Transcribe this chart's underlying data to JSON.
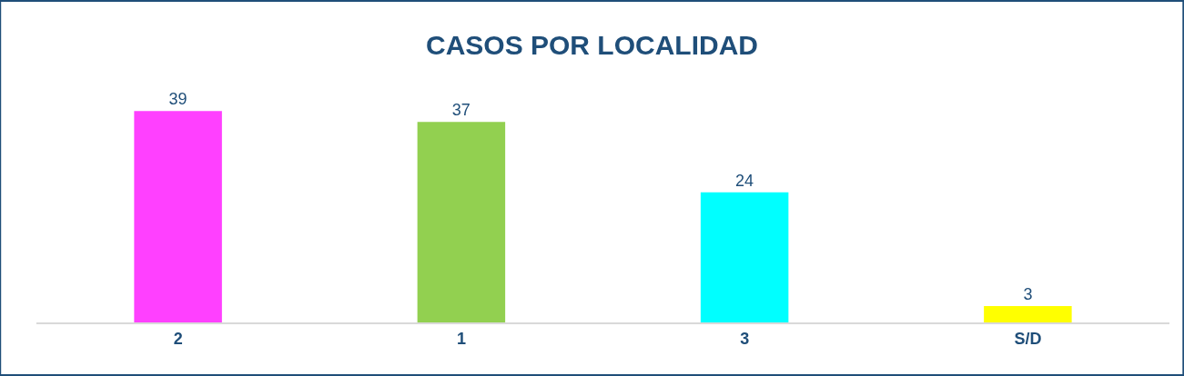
{
  "chart_data": {
    "type": "bar",
    "title": "CASOS POR LOCALIDAD",
    "categories": [
      "2",
      "1",
      "3",
      "S/D"
    ],
    "values": [
      39,
      37,
      24,
      3
    ],
    "colors": [
      "#ff40ff",
      "#92d050",
      "#00ffff",
      "#ffff00"
    ],
    "data_labels": true
  }
}
